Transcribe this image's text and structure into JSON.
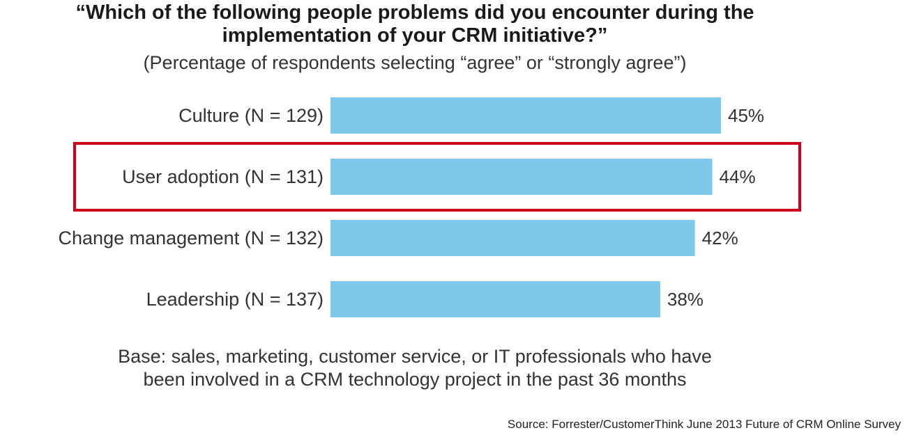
{
  "title_line1": "“Which of the following people problems did you encounter during the",
  "title_line2": "implementation of your CRM initiative?”",
  "subtitle": "(Percentage of respondents selecting  “agree” or “strongly agree”)",
  "chart_data": {
    "type": "bar",
    "orientation": "horizontal",
    "categories": [
      "Culture (N = 129)",
      "User adoption (N = 131)",
      "Change management (N = 132)",
      "Leadership (N = 137)"
    ],
    "values": [
      45,
      44,
      42,
      38
    ],
    "value_labels": [
      "45%",
      "44%",
      "42%",
      "38%"
    ],
    "highlighted_category": "User adoption (N = 131)",
    "xlim": [
      0,
      45
    ],
    "grid": false,
    "bar_color": "#7ec8ec",
    "highlight_color": "#d0021b"
  },
  "base_note_line1": "Base: sales, marketing, customer service, or IT professionals who have",
  "base_note_line2": "been involved in a CRM technology project in the past 36 months",
  "source": "Source: Forrester/CustomerThink June 2013 Future of CRM Online Survey"
}
